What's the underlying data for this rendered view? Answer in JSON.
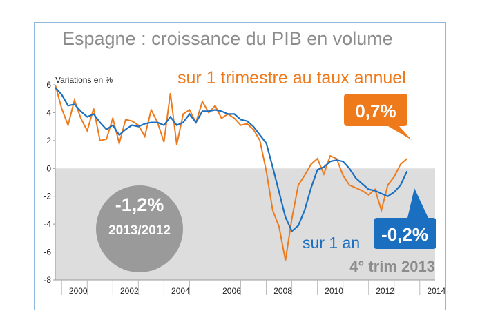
{
  "chart_data": {
    "type": "line",
    "title": "Espagne : croissance du PIB en volume",
    "ylabel": "Variations en %",
    "xlabel": "",
    "ylim": [
      -8,
      6
    ],
    "xlim": [
      1999.75,
      2014.6
    ],
    "yticks": [
      6,
      4,
      2,
      0,
      -2,
      -4,
      -6,
      -8
    ],
    "yticklabels": [
      "6",
      "4",
      "2",
      "0",
      "-2",
      "-4",
      "-6",
      "-8"
    ],
    "xticks": [
      2000,
      2002,
      2004,
      2006,
      2008,
      2010,
      2012,
      2014
    ],
    "xticklabels": [
      "2000",
      "2002",
      "2004",
      "2006",
      "2008",
      "2010",
      "2012",
      "2014"
    ],
    "series": [
      {
        "name": "sur 1 trimestre au taux annuel",
        "color": "#ee7a1b",
        "x": [
          1999.75,
          2000.0,
          2000.25,
          2000.5,
          2000.75,
          2001.0,
          2001.25,
          2001.5,
          2001.75,
          2002.0,
          2002.25,
          2002.5,
          2002.75,
          2003.0,
          2003.25,
          2003.5,
          2003.75,
          2004.0,
          2004.25,
          2004.5,
          2004.75,
          2005.0,
          2005.25,
          2005.5,
          2005.75,
          2006.0,
          2006.25,
          2006.5,
          2006.75,
          2007.0,
          2007.25,
          2007.5,
          2007.75,
          2008.0,
          2008.25,
          2008.5,
          2008.75,
          2009.0,
          2009.25,
          2009.5,
          2009.75,
          2010.0,
          2010.25,
          2010.5,
          2010.75,
          2011.0,
          2011.25,
          2011.5,
          2011.75,
          2012.0,
          2012.25,
          2012.5,
          2012.75,
          2013.0,
          2013.25,
          2013.5
        ],
        "y": [
          6.0,
          4.3,
          3.1,
          4.9,
          3.6,
          2.7,
          4.3,
          2.0,
          2.1,
          3.6,
          1.8,
          3.5,
          3.4,
          3.1,
          2.3,
          4.2,
          3.3,
          1.9,
          5.4,
          1.7,
          3.9,
          4.2,
          3.3,
          4.8,
          4.0,
          4.5,
          3.6,
          3.9,
          3.6,
          3.1,
          3.2,
          2.8,
          2.0,
          -0.2,
          -3.0,
          -4.2,
          -6.6,
          -3.6,
          -1.2,
          -0.5,
          0.3,
          0.7,
          -0.4,
          0.9,
          0.7,
          -0.5,
          -1.2,
          -1.4,
          -1.6,
          -1.9,
          -1.5,
          -3.0,
          -1.2,
          -0.6,
          0.3,
          0.7
        ]
      },
      {
        "name": "sur 1 an",
        "color": "#1a6fc1",
        "x": [
          1999.75,
          2000.0,
          2000.25,
          2000.5,
          2000.75,
          2001.0,
          2001.25,
          2001.5,
          2001.75,
          2002.0,
          2002.25,
          2002.5,
          2002.75,
          2003.0,
          2003.25,
          2003.5,
          2003.75,
          2004.0,
          2004.25,
          2004.5,
          2004.75,
          2005.0,
          2005.25,
          2005.5,
          2005.75,
          2006.0,
          2006.25,
          2006.5,
          2006.75,
          2007.0,
          2007.25,
          2007.5,
          2007.75,
          2008.0,
          2008.25,
          2008.5,
          2008.75,
          2009.0,
          2009.25,
          2009.5,
          2009.75,
          2010.0,
          2010.25,
          2010.5,
          2010.75,
          2011.0,
          2011.25,
          2011.5,
          2011.75,
          2012.0,
          2012.25,
          2012.5,
          2012.75,
          2013.0,
          2013.25,
          2013.5
        ],
        "y": [
          5.8,
          5.3,
          4.5,
          4.6,
          4.1,
          3.7,
          3.9,
          3.3,
          2.8,
          3.1,
          2.4,
          2.8,
          3.1,
          3.0,
          3.2,
          3.3,
          3.3,
          3.1,
          3.7,
          3.1,
          3.3,
          3.9,
          3.3,
          4.1,
          4.1,
          4.2,
          4.1,
          3.9,
          3.9,
          3.5,
          3.4,
          3.0,
          2.4,
          1.8,
          0.1,
          -1.7,
          -3.5,
          -4.5,
          -4.1,
          -3.0,
          -1.4,
          -0.1,
          0.1,
          0.5,
          0.6,
          0.5,
          0.0,
          -0.7,
          -1.1,
          -1.5,
          -1.6,
          -1.8,
          -2.0,
          -1.7,
          -1.2,
          -0.2
        ]
      }
    ],
    "annotations": {
      "quarter_label": "sur 1 trimestre au taux annuel",
      "quarter_value": "0,7%",
      "year_label": "sur 1 an",
      "year_value": "-0,2%",
      "period": "4° trim 2013",
      "circle_value": "-1,2%",
      "circle_period": "2013/2012"
    },
    "colors": {
      "orange": "#ee7a1b",
      "blue": "#1a6fc1",
      "negative_band": "#dddddd",
      "circle": "#9a9a9a",
      "frame": "#8fb8dc"
    }
  }
}
